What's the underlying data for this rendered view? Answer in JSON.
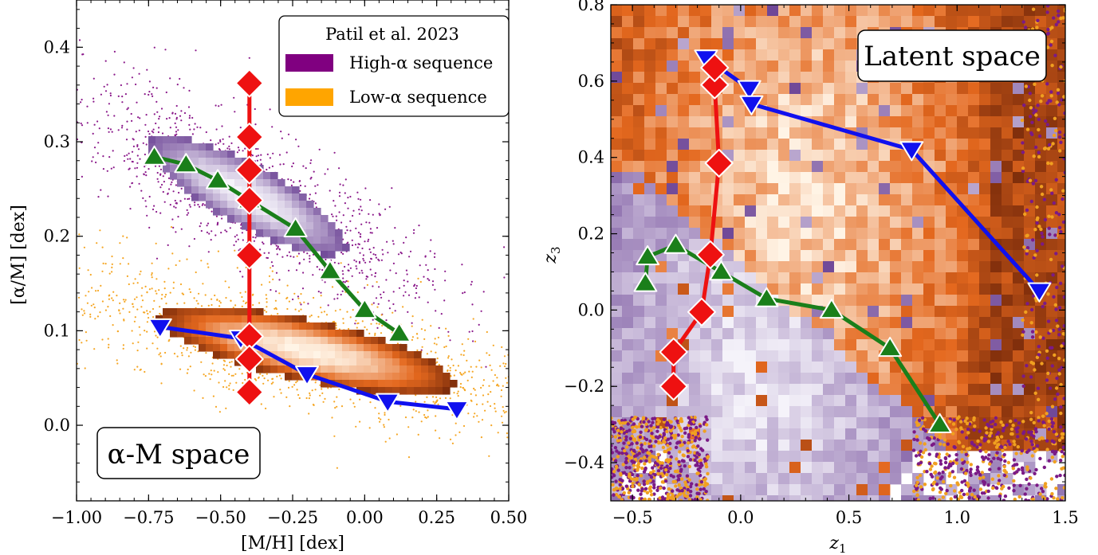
{
  "chart_data": [
    {
      "type": "scatter",
      "panel": "alpha-M space",
      "xlabel": "[M/H] [dex]",
      "ylabel": "[α/M] [dex]",
      "xlim": [
        -1.0,
        0.5
      ],
      "ylim": [
        -0.08,
        0.45
      ],
      "xticks": [
        "−1.00",
        "−0.75",
        "−0.50",
        "−0.25",
        "0.00",
        "0.25",
        "0.50"
      ],
      "yticks": [
        "0.0",
        "0.1",
        "0.2",
        "0.3",
        "0.4"
      ],
      "annotation": "α-M space",
      "legend": {
        "title": "Patil et al. 2023",
        "position": "top-right",
        "entries": [
          {
            "label": "High-α sequence",
            "color": "#800080"
          },
          {
            "label": "Low-α sequence",
            "color": "#ffa500"
          }
        ]
      },
      "series": [
        {
          "marker": "triangle-up",
          "color": "#1a7f1a",
          "x": [
            -0.73,
            -0.62,
            -0.51,
            -0.4,
            -0.24,
            -0.12,
            0.0,
            0.12
          ],
          "y": [
            0.284,
            0.276,
            0.259,
            0.238,
            0.208,
            0.163,
            0.122,
            0.097
          ]
        },
        {
          "marker": "diamond",
          "color": "#ee1111",
          "x": [
            -0.4,
            -0.4,
            -0.4,
            -0.4,
            -0.4,
            -0.4,
            -0.4,
            -0.4
          ],
          "y": [
            0.362,
            0.305,
            0.27,
            0.238,
            0.18,
            0.094,
            0.07,
            0.035
          ]
        },
        {
          "marker": "triangle-down",
          "color": "#1010ee",
          "x": [
            -0.71,
            -0.43,
            -0.2,
            0.08,
            0.32
          ],
          "y": [
            0.104,
            0.092,
            0.054,
            0.025,
            0.017
          ]
        }
      ]
    },
    {
      "type": "scatter",
      "panel": "latent space",
      "xlabel": "z1",
      "ylabel": "z3",
      "xlim": [
        -0.6,
        1.5
      ],
      "ylim": [
        -0.5,
        0.8
      ],
      "xticks": [
        "−0.5",
        "0.0",
        "0.5",
        "1.0",
        "1.5"
      ],
      "yticks": [
        "−0.4",
        "−0.2",
        "0.0",
        "0.2",
        "0.4",
        "0.6",
        "0.8"
      ],
      "annotation": "Latent space",
      "series": [
        {
          "marker": "triangle-up",
          "color": "#1a7f1a",
          "x": [
            -0.44,
            -0.43,
            -0.3,
            -0.09,
            0.12,
            0.42,
            0.69,
            0.92
          ],
          "y": [
            0.07,
            0.14,
            0.17,
            0.1,
            0.03,
            0.0,
            -0.1,
            -0.3
          ]
        },
        {
          "marker": "diamond",
          "color": "#ee1111",
          "x": [
            -0.31,
            -0.31,
            -0.18,
            -0.14,
            -0.1,
            -0.12,
            -0.12
          ],
          "y": [
            -0.2,
            -0.11,
            -0.005,
            0.145,
            0.385,
            0.59,
            0.635
          ]
        },
        {
          "marker": "triangle-down",
          "color": "#1010ee",
          "x": [
            -0.16,
            0.04,
            0.05,
            0.79,
            1.38
          ],
          "y": [
            0.66,
            0.58,
            0.54,
            0.42,
            0.05
          ]
        }
      ]
    }
  ]
}
